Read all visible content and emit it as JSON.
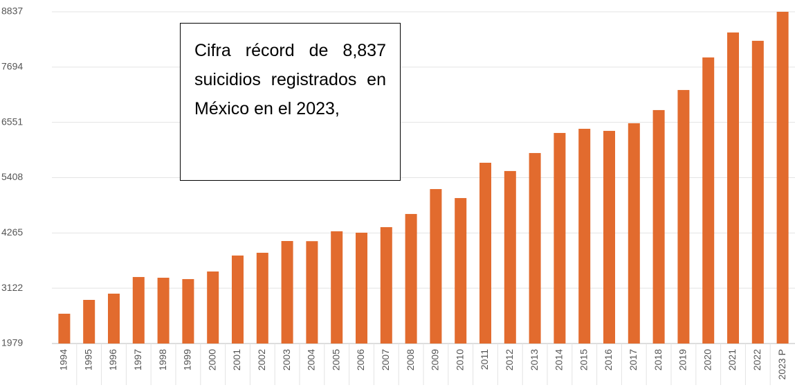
{
  "chart_data": {
    "type": "bar",
    "annotation": "Cifra récord de 8,837 suicidios registrados en México en el 2023,",
    "categories": [
      "1994",
      "1995",
      "1996",
      "1997",
      "1998",
      "1999",
      "2000",
      "2001",
      "2002",
      "2003",
      "2004",
      "2005",
      "2006",
      "2007",
      "2008",
      "2009",
      "2010",
      "2011",
      "2012",
      "2013",
      "2014",
      "2015",
      "2016",
      "2017",
      "2018",
      "2019",
      "2020",
      "2021",
      "2022",
      "2023 P"
    ],
    "values": [
      2595,
      2881,
      3010,
      3354,
      3339,
      3311,
      3468,
      3798,
      3855,
      4098,
      4095,
      4299,
      4270,
      4385,
      4657,
      5172,
      4986,
      5716,
      5545,
      5917,
      6332,
      6418,
      6375,
      6533,
      6805,
      7220,
      7893,
      8409,
      8237,
      8837
    ],
    "color": "#e26b2e",
    "ylim": [
      1979,
      8837
    ],
    "yticks": [
      1979,
      3122,
      4265,
      5408,
      6551,
      7694,
      8837
    ],
    "grid": true
  }
}
